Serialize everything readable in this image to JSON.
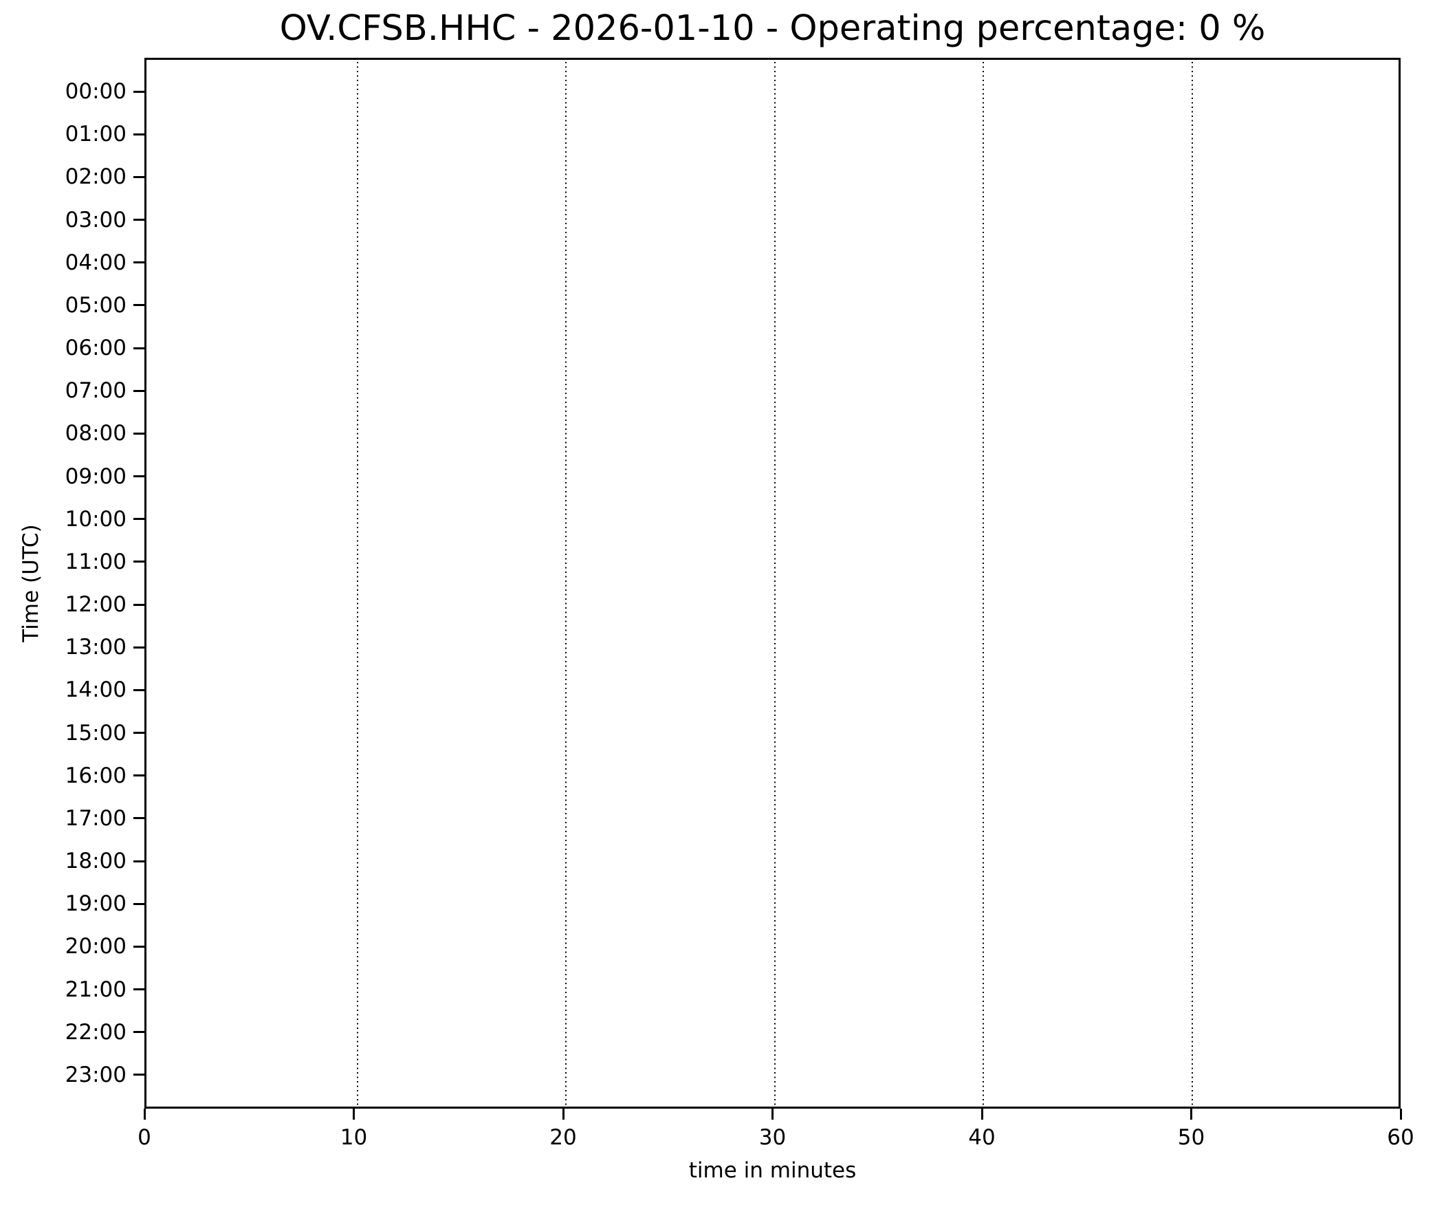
{
  "figure": {
    "title": "OV.CFSB.HHC - 2026-01-10 - Operating percentage: 0 %",
    "station_id": "OV.CFSB.HHC",
    "date": "2026-01-10",
    "operating_percentage_label": "0 %"
  },
  "axes": {
    "x_label": "time in minutes",
    "y_label": "Time (UTC)",
    "x_tick_labels": [
      "0",
      "10",
      "20",
      "30",
      "40",
      "50",
      "60"
    ],
    "y_tick_labels": [
      "00:00",
      "01:00",
      "02:00",
      "03:00",
      "04:00",
      "05:00",
      "06:00",
      "07:00",
      "08:00",
      "09:00",
      "10:00",
      "11:00",
      "12:00",
      "13:00",
      "14:00",
      "15:00",
      "16:00",
      "17:00",
      "18:00",
      "19:00",
      "20:00",
      "21:00",
      "22:00",
      "23:00"
    ]
  },
  "chart_data": {
    "type": "line",
    "title": "OV.CFSB.HHC - 2026-01-10 - Operating percentage: 0 %",
    "xlabel": "time in minutes",
    "ylabel": "Time (UTC)",
    "xlim": [
      0,
      60
    ],
    "x_ticks": [
      0,
      10,
      20,
      30,
      40,
      50,
      60
    ],
    "y_tick_labels": [
      "00:00",
      "01:00",
      "02:00",
      "03:00",
      "04:00",
      "05:00",
      "06:00",
      "07:00",
      "08:00",
      "09:00",
      "10:00",
      "11:00",
      "12:00",
      "13:00",
      "14:00",
      "15:00",
      "16:00",
      "17:00",
      "18:00",
      "19:00",
      "20:00",
      "21:00",
      "22:00",
      "23:00"
    ],
    "y_axis_direction": "top-to-bottom",
    "grid": {
      "x_values": [
        10,
        20,
        30,
        40,
        50
      ],
      "style": "dotted",
      "color": "#000000",
      "horizontal": false
    },
    "station_id": "OV.CFSB.HHC",
    "date": "2026-01-10",
    "operating_percentage": 0,
    "series": []
  },
  "colors": {
    "background": "#ffffff",
    "foreground": "#000000"
  }
}
